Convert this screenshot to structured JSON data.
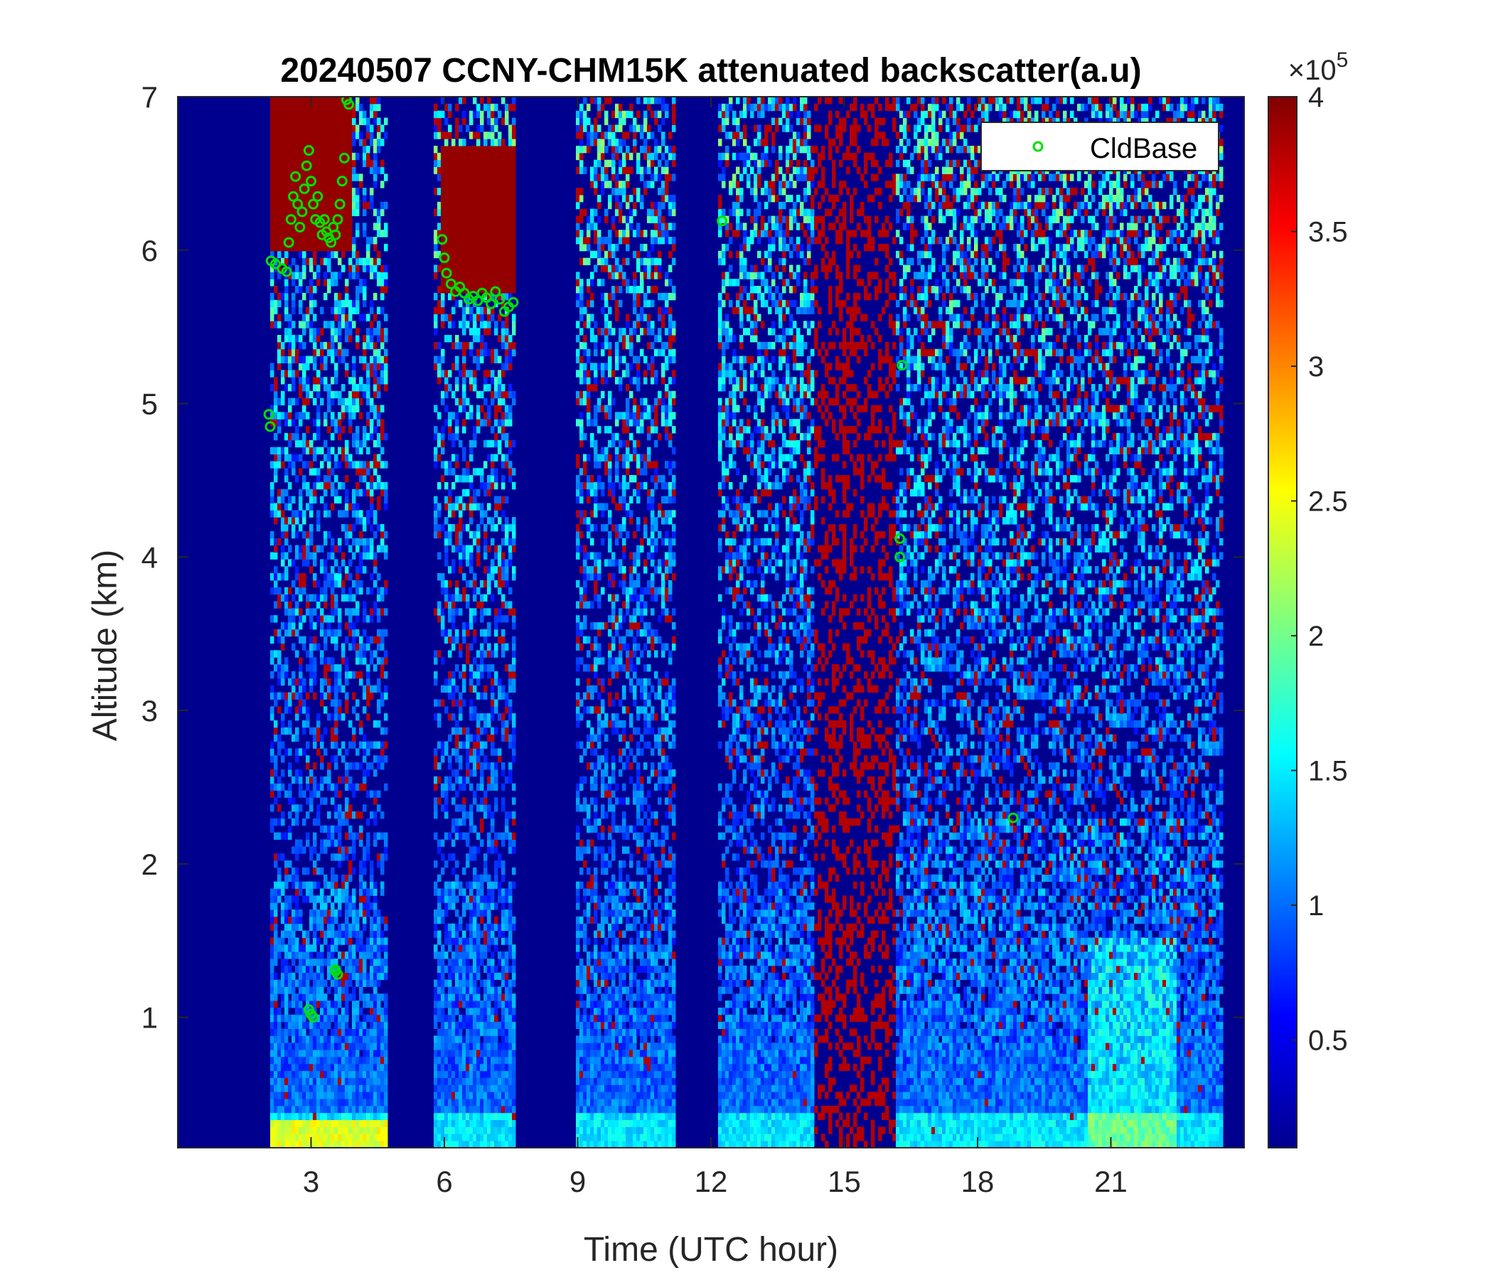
{
  "chart_data": {
    "type": "heatmap",
    "title": "20240507 CCNY-CHM15K attenuated backscatter(a.u)",
    "xlabel": "Time (UTC hour)",
    "ylabel": "Altitude (km)",
    "xlim": [
      0,
      24
    ],
    "ylim": [
      0.15,
      7
    ],
    "xticks": [
      3,
      6,
      9,
      12,
      15,
      18,
      21
    ],
    "yticks": [
      1,
      2,
      3,
      4,
      5,
      6,
      7
    ],
    "colormap": "jet",
    "clim": [
      0.1,
      4
    ],
    "colorbar": {
      "multiplier": "×10",
      "exponent": "5",
      "ticks": [
        0.5,
        1,
        1.5,
        2,
        2.5,
        3,
        3.5,
        4
      ],
      "tick_labels": [
        "0.5",
        "1",
        "1.5",
        "2",
        "2.5",
        "3",
        "3.5",
        "4"
      ]
    },
    "legend": {
      "entries": [
        "CldBase"
      ],
      "placement": "top-right",
      "marker_color": "#00e000"
    },
    "colors": {
      "background_fill": "#00008f",
      "axis_text": "#262626"
    },
    "cloud_base_points": [
      {
        "x": 2.1,
        "y": 5.93
      },
      {
        "x": 2.2,
        "y": 5.91
      },
      {
        "x": 2.35,
        "y": 5.88
      },
      {
        "x": 2.45,
        "y": 5.86
      },
      {
        "x": 2.5,
        "y": 6.05
      },
      {
        "x": 2.55,
        "y": 6.2
      },
      {
        "x": 2.6,
        "y": 6.35
      },
      {
        "x": 2.65,
        "y": 6.48
      },
      {
        "x": 2.7,
        "y": 6.3
      },
      {
        "x": 2.75,
        "y": 6.15
      },
      {
        "x": 2.8,
        "y": 6.25
      },
      {
        "x": 2.85,
        "y": 6.4
      },
      {
        "x": 2.9,
        "y": 6.55
      },
      {
        "x": 2.95,
        "y": 6.65
      },
      {
        "x": 3.0,
        "y": 6.45
      },
      {
        "x": 3.05,
        "y": 6.3
      },
      {
        "x": 3.1,
        "y": 6.2
      },
      {
        "x": 3.15,
        "y": 6.35
      },
      {
        "x": 3.2,
        "y": 6.18
      },
      {
        "x": 3.25,
        "y": 6.1
      },
      {
        "x": 3.3,
        "y": 6.2
      },
      {
        "x": 3.35,
        "y": 6.12
      },
      {
        "x": 3.4,
        "y": 6.08
      },
      {
        "x": 3.45,
        "y": 6.05
      },
      {
        "x": 3.5,
        "y": 6.15
      },
      {
        "x": 3.55,
        "y": 6.1
      },
      {
        "x": 3.6,
        "y": 6.2
      },
      {
        "x": 3.65,
        "y": 6.3
      },
      {
        "x": 3.7,
        "y": 6.45
      },
      {
        "x": 3.75,
        "y": 6.6
      },
      {
        "x": 3.8,
        "y": 6.98
      },
      {
        "x": 3.85,
        "y": 6.95
      },
      {
        "x": 2.05,
        "y": 4.93
      },
      {
        "x": 2.08,
        "y": 4.85
      },
      {
        "x": 2.95,
        "y": 1.05
      },
      {
        "x": 3.0,
        "y": 1.02
      },
      {
        "x": 3.05,
        "y": 1.0
      },
      {
        "x": 3.55,
        "y": 1.3
      },
      {
        "x": 3.6,
        "y": 1.28
      },
      {
        "x": 5.95,
        "y": 6.07
      },
      {
        "x": 6.0,
        "y": 5.95
      },
      {
        "x": 6.05,
        "y": 5.85
      },
      {
        "x": 6.15,
        "y": 5.78
      },
      {
        "x": 6.25,
        "y": 5.73
      },
      {
        "x": 6.35,
        "y": 5.76
      },
      {
        "x": 6.45,
        "y": 5.72
      },
      {
        "x": 6.55,
        "y": 5.68
      },
      {
        "x": 6.65,
        "y": 5.7
      },
      {
        "x": 6.75,
        "y": 5.67
      },
      {
        "x": 6.85,
        "y": 5.72
      },
      {
        "x": 6.95,
        "y": 5.69
      },
      {
        "x": 7.05,
        "y": 5.65
      },
      {
        "x": 7.15,
        "y": 5.73
      },
      {
        "x": 7.25,
        "y": 5.68
      },
      {
        "x": 7.35,
        "y": 5.6
      },
      {
        "x": 7.45,
        "y": 5.63
      },
      {
        "x": 7.55,
        "y": 5.66
      },
      {
        "x": 12.25,
        "y": 6.19
      },
      {
        "x": 16.3,
        "y": 5.25
      },
      {
        "x": 16.25,
        "y": 4.12
      },
      {
        "x": 16.25,
        "y": 4.0
      },
      {
        "x": 18.8,
        "y": 2.3
      },
      {
        "x": 3.55,
        "y": 1.31
      }
    ]
  }
}
